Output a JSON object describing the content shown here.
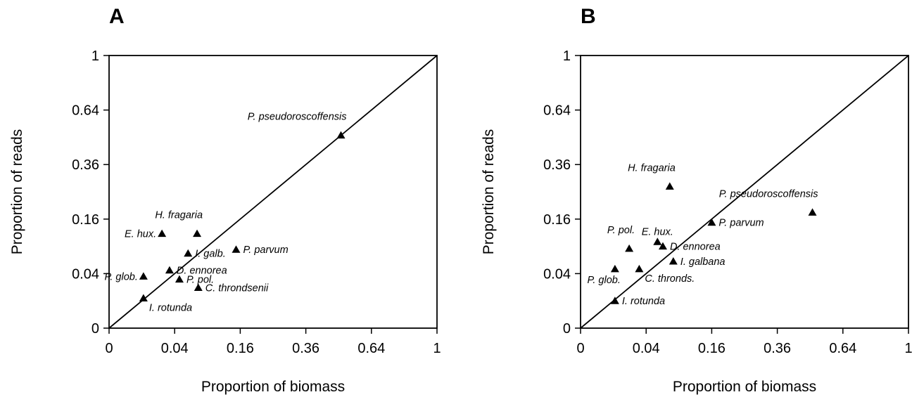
{
  "chart_data": [
    {
      "type": "scatter",
      "panel": "A",
      "xlabel": "Proportion of biomass",
      "ylabel": "Proportion of reads",
      "scale": "sqrt",
      "xlim": [
        0,
        1
      ],
      "ylim": [
        0,
        1
      ],
      "ticks": [
        0,
        0.04,
        0.16,
        0.36,
        0.64,
        1
      ],
      "tick_labels": [
        "0",
        "0.04",
        "0.16",
        "0.36",
        "0.64",
        "1"
      ],
      "reference_line": "y = x",
      "grid": false,
      "marker": "triangle",
      "points": [
        {
          "label": "P. pseudoroscoffensis",
          "x": 0.5,
          "y": 0.5,
          "label_pos": "above-left"
        },
        {
          "label": "H. fragaria",
          "x": 0.072,
          "y": 0.12,
          "label_pos": "above-left"
        },
        {
          "label": "E. hux.",
          "x": 0.026,
          "y": 0.12,
          "label_pos": "left"
        },
        {
          "label": "P. parvum",
          "x": 0.15,
          "y": 0.083,
          "label_pos": "right"
        },
        {
          "label": "I. galb.",
          "x": 0.058,
          "y": 0.075,
          "label_pos": "right"
        },
        {
          "label": "D. ennorea",
          "x": 0.034,
          "y": 0.045,
          "label_pos": "right"
        },
        {
          "label": "P. glob.",
          "x": 0.011,
          "y": 0.036,
          "label_pos": "left"
        },
        {
          "label": "P. pol.",
          "x": 0.046,
          "y": 0.032,
          "label_pos": "right"
        },
        {
          "label": "C. throndsenii",
          "x": 0.074,
          "y": 0.022,
          "label_pos": "right"
        },
        {
          "label": "I. rotunda",
          "x": 0.011,
          "y": 0.012,
          "label_pos": "below-right"
        }
      ]
    },
    {
      "type": "scatter",
      "panel": "B",
      "xlabel": "Proportion of biomass",
      "ylabel": "Proportion of reads",
      "scale": "sqrt",
      "xlim": [
        0,
        1
      ],
      "ylim": [
        0,
        1
      ],
      "ticks": [
        0,
        0.04,
        0.16,
        0.36,
        0.64,
        1
      ],
      "tick_labels": [
        "0",
        "0.04",
        "0.16",
        "0.36",
        "0.64",
        "1"
      ],
      "reference_line": "y = x",
      "grid": false,
      "marker": "triangle",
      "points": [
        {
          "label": "H. fragaria",
          "x": 0.074,
          "y": 0.27,
          "label_pos": "above-left"
        },
        {
          "label": "P. pseudoroscoffensis",
          "x": 0.5,
          "y": 0.18,
          "label_pos": "above-left"
        },
        {
          "label": "P. parvum",
          "x": 0.16,
          "y": 0.15,
          "label_pos": "right"
        },
        {
          "label": "E. hux.",
          "x": 0.055,
          "y": 0.1,
          "label_pos": "above"
        },
        {
          "label": "P. pol.",
          "x": 0.022,
          "y": 0.085,
          "label_pos": "above-left"
        },
        {
          "label": "D. ennorea",
          "x": 0.063,
          "y": 0.09,
          "label_pos": "right"
        },
        {
          "label": "I. galbana",
          "x": 0.08,
          "y": 0.06,
          "label_pos": "right"
        },
        {
          "label": "C. thronds.",
          "x": 0.032,
          "y": 0.047,
          "label_pos": "below-right"
        },
        {
          "label": "P. glob.",
          "x": 0.011,
          "y": 0.047,
          "label_pos": "below-left"
        },
        {
          "label": "I. rotunda",
          "x": 0.011,
          "y": 0.01,
          "label_pos": "right"
        }
      ]
    }
  ]
}
